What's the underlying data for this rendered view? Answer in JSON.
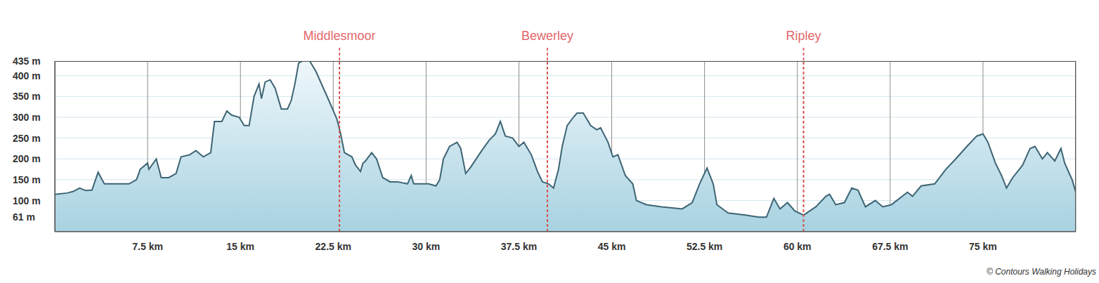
{
  "chart_data": {
    "type": "area",
    "x": [
      0,
      1,
      1.5,
      2,
      2.5,
      3,
      3.5,
      4,
      6,
      6.6,
      6.9,
      7.5,
      7.6,
      8.2,
      8.6,
      9.2,
      9.8,
      10.2,
      10.9,
      11.4,
      12,
      12.6,
      12.9,
      13.5,
      13.9,
      14.3,
      14.9,
      15.3,
      15.7,
      16.1,
      16.5,
      16.7,
      17,
      17.4,
      17.8,
      18.3,
      18.8,
      19.1,
      19.4,
      19.7,
      20,
      20.6,
      21.1,
      21.7,
      22.3,
      22.8,
      23.1,
      23.4,
      24,
      24.3,
      24.7,
      24.9,
      25.1,
      25.6,
      26,
      26.5,
      27.1,
      27.7,
      28.5,
      28.8,
      29,
      29.7,
      30.2,
      30.8,
      31.1,
      31.4,
      31.9,
      32.5,
      32.8,
      33.2,
      33.6,
      34.5,
      35.1,
      35.6,
      36,
      36.4,
      37,
      37.5,
      37.9,
      38.5,
      39,
      39.4,
      39.9,
      40.3,
      40.7,
      41,
      41.4,
      41.9,
      42.2,
      42.7,
      43.3,
      43.8,
      44.1,
      44.7,
      45.1,
      45.5,
      46.1,
      46.7,
      47,
      47.8,
      49,
      50.7,
      51.5,
      52.1,
      52.7,
      53.2,
      53.5,
      54.4,
      55.8,
      56.9,
      57.5,
      58.1,
      58.6,
      59.2,
      59.8,
      60.5,
      61.5,
      62.3,
      62.6,
      63.1,
      63.8,
      64.4,
      64.9,
      65.5,
      66.3,
      66.9,
      67.6,
      68.9,
      69.3,
      70,
      71.1,
      72,
      72.8,
      73.7,
      74.5,
      75,
      75.4,
      76,
      76.5,
      76.9,
      77.4,
      78.2,
      78.8,
      79.2,
      79.8,
      80.2,
      80.8,
      81.3,
      81.6,
      82.2,
      82.5
    ],
    "values": [
      115,
      118,
      122,
      130,
      124,
      125,
      168,
      140,
      140,
      150,
      175,
      190,
      175,
      200,
      155,
      155,
      165,
      205,
      210,
      220,
      205,
      215,
      290,
      290,
      315,
      305,
      300,
      280,
      280,
      350,
      380,
      345,
      385,
      390,
      370,
      320,
      320,
      340,
      380,
      430,
      435,
      435,
      410,
      370,
      330,
      295,
      260,
      215,
      205,
      185,
      170,
      190,
      195,
      215,
      200,
      155,
      145,
      145,
      140,
      160,
      140,
      140,
      140,
      135,
      150,
      200,
      230,
      240,
      225,
      165,
      180,
      220,
      245,
      260,
      290,
      255,
      250,
      230,
      240,
      210,
      170,
      145,
      140,
      130,
      175,
      230,
      280,
      300,
      310,
      310,
      280,
      270,
      275,
      240,
      205,
      210,
      160,
      140,
      100,
      90,
      85,
      80,
      95,
      140,
      178,
      140,
      90,
      70,
      65,
      60,
      60,
      105,
      80,
      95,
      75,
      65,
      85,
      110,
      115,
      90,
      95,
      130,
      125,
      85,
      100,
      85,
      90,
      120,
      110,
      135,
      140,
      175,
      200,
      230,
      255,
      260,
      240,
      190,
      160,
      130,
      155,
      185,
      225,
      230,
      200,
      215,
      195,
      225,
      190,
      150,
      120
    ],
    "color": "#3d6474",
    "xlim": [
      0,
      82.5
    ],
    "xticks": [
      {
        "value": 7.5,
        "label": "7.5 km"
      },
      {
        "value": 15,
        "label": "15 km"
      },
      {
        "value": 22.5,
        "label": "22.5 km"
      },
      {
        "value": 30,
        "label": "30 km"
      },
      {
        "value": 37.5,
        "label": "37.5 km"
      },
      {
        "value": 45,
        "label": "45 km"
      },
      {
        "value": 52.5,
        "label": "52.5 km"
      },
      {
        "value": 60,
        "label": "60 km"
      },
      {
        "value": 67.5,
        "label": "67.5 km"
      },
      {
        "value": 75,
        "label": "75 km"
      }
    ],
    "ylim": [
      25,
      435
    ],
    "yticks": [
      {
        "value": 61,
        "label": "61 m"
      },
      {
        "value": 100,
        "label": "100 m"
      },
      {
        "value": 150,
        "label": "150 m"
      },
      {
        "value": 200,
        "label": "200 m"
      },
      {
        "value": 250,
        "label": "250 m"
      },
      {
        "value": 300,
        "label": "300 m"
      },
      {
        "value": 350,
        "label": "350 m"
      },
      {
        "value": 400,
        "label": "400 m"
      },
      {
        "value": 435,
        "label": "435 m"
      }
    ],
    "grid": true,
    "annotations": [
      {
        "x": 23,
        "label": "Middlesmoor"
      },
      {
        "x": 39.8,
        "label": "Bewerley"
      },
      {
        "x": 60.5,
        "label": "Ripley"
      }
    ],
    "credit": "© Contours Walking Holidays"
  }
}
